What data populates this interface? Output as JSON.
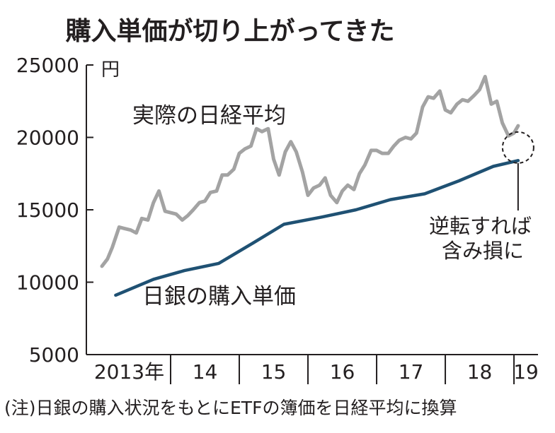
{
  "chart_data": {
    "type": "line",
    "title": "購入単価が切り上がってきた",
    "unit": "円",
    "yticks": [
      "25000",
      "20000",
      "15000",
      "10000",
      "5000"
    ],
    "ylim": [
      5000,
      25000
    ],
    "xlim": [
      2013.0,
      2019.35
    ],
    "year_labels": [
      "2013年",
      "14",
      "15",
      "16",
      "17",
      "18",
      "19"
    ],
    "series": [
      {
        "name": "実際の日経平均",
        "color": "#a3a3a3",
        "x": [
          2013.0,
          2013.08,
          2013.15,
          2013.25,
          2013.33,
          2013.42,
          2013.5,
          2013.58,
          2013.67,
          2013.75,
          2013.83,
          2013.92,
          2014.0,
          2014.08,
          2014.17,
          2014.25,
          2014.33,
          2014.42,
          2014.5,
          2014.58,
          2014.67,
          2014.75,
          2014.83,
          2014.92,
          2015.0,
          2015.08,
          2015.17,
          2015.25,
          2015.33,
          2015.42,
          2015.5,
          2015.58,
          2015.67,
          2015.75,
          2015.83,
          2015.92,
          2016.0,
          2016.08,
          2016.17,
          2016.25,
          2016.33,
          2016.42,
          2016.5,
          2016.58,
          2016.67,
          2016.75,
          2016.83,
          2016.92,
          2017.0,
          2017.08,
          2017.17,
          2017.25,
          2017.33,
          2017.42,
          2017.5,
          2017.58,
          2017.67,
          2017.75,
          2017.83,
          2017.92,
          2018.0,
          2018.08,
          2018.17,
          2018.25,
          2018.33,
          2018.42,
          2018.5,
          2018.58,
          2018.67,
          2018.75,
          2018.83,
          2018.92,
          2019.0,
          2019.06
        ],
        "values": [
          11100,
          11600,
          12400,
          13800,
          13700,
          13600,
          13400,
          14400,
          14300,
          15500,
          16300,
          14900,
          14800,
          14700,
          14300,
          14600,
          15000,
          15500,
          15600,
          16200,
          16300,
          17400,
          17400,
          17800,
          18900,
          19200,
          19400,
          20600,
          20400,
          20600,
          18500,
          17400,
          19000,
          19700,
          19000,
          17600,
          16000,
          16500,
          16700,
          17200,
          16000,
          15500,
          16300,
          16700,
          16400,
          17500,
          18100,
          19100,
          19100,
          18900,
          18900,
          19400,
          19800,
          20000,
          19900,
          20300,
          22100,
          22800,
          22700,
          23200,
          21900,
          21700,
          22300,
          22600,
          22500,
          22900,
          23300,
          24200,
          22300,
          22500,
          21000,
          20100,
          20300,
          20800
        ]
      },
      {
        "name": "日銀の購入単価",
        "color": "#1f5173",
        "x": [
          2013.2,
          2013.75,
          2014.2,
          2014.7,
          2015.2,
          2015.65,
          2016.2,
          2016.7,
          2017.2,
          2017.7,
          2018.2,
          2018.7,
          2019.06
        ],
        "values": [
          9100,
          10200,
          10800,
          11300,
          12700,
          14000,
          14500,
          15000,
          15700,
          16100,
          17000,
          18000,
          18400
        ]
      }
    ],
    "annotation": [
      "逆転すれば",
      "含み損に"
    ],
    "note": "(注)日銀の購入状況をもとにETFの簿価を日経平均に換算"
  }
}
